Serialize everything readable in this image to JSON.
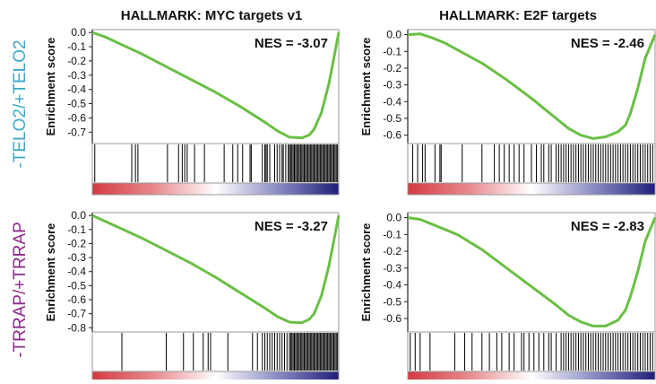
{
  "column_titles": [
    "HALLMARK: MYC targets v1",
    "HALLMARK: E2F targets"
  ],
  "row_labels": [
    {
      "text": "-TELO2/+TELO2",
      "color": "#3aa8c9"
    },
    {
      "text": "-TRRAP/+TRRAP",
      "color": "#8b2a8a"
    }
  ],
  "colors": {
    "curve": "#6abf45",
    "axis": "#222222",
    "ranked_high": "#d43a42",
    "ranked_mid": "#ffffff",
    "ranked_low": "#1f1f7a"
  },
  "chart_data": [
    {
      "type": "line",
      "title": "HALLMARK: MYC targets v1",
      "group": "-TELO2/+TELO2",
      "ylabel": "Enrichment score",
      "annotation": "NES = -3.07",
      "ylim": [
        -0.78,
        0.02
      ],
      "yticks": [
        0.0,
        -0.1,
        -0.2,
        -0.3,
        -0.4,
        -0.5,
        -0.6,
        -0.7
      ],
      "ytick_labels": [
        "0.0",
        "-0.1",
        "-0.2",
        "-0.3",
        "-0.4",
        "-0.5",
        "-0.6",
        "-0.7"
      ],
      "x": [
        0,
        0.05,
        0.1,
        0.2,
        0.3,
        0.4,
        0.5,
        0.6,
        0.7,
        0.75,
        0.8,
        0.85,
        0.88,
        0.9,
        0.93,
        0.96,
        0.98,
        1.0
      ],
      "y": [
        0.0,
        -0.03,
        -0.07,
        -0.15,
        -0.24,
        -0.33,
        -0.42,
        -0.52,
        -0.63,
        -0.69,
        -0.735,
        -0.74,
        -0.72,
        -0.68,
        -0.56,
        -0.36,
        -0.18,
        0.0
      ],
      "hits": [
        0.01,
        0.16,
        0.175,
        0.185,
        0.305,
        0.35,
        0.365,
        0.375,
        0.385,
        0.415,
        0.455,
        0.535,
        0.57,
        0.59,
        0.61,
        0.64,
        0.645,
        0.69,
        0.7,
        0.705,
        0.71,
        0.72,
        0.74,
        0.75,
        0.76,
        0.77,
        0.775,
        0.785,
        0.795,
        0.8,
        0.805,
        0.81,
        0.815,
        0.82,
        0.825,
        0.83,
        0.835,
        0.84,
        0.845,
        0.85,
        0.855,
        0.86,
        0.865,
        0.87,
        0.875,
        0.88,
        0.885,
        0.89,
        0.895,
        0.9,
        0.905,
        0.91,
        0.915,
        0.92,
        0.925,
        0.93,
        0.935,
        0.94,
        0.945,
        0.95,
        0.955,
        0.96,
        0.965,
        0.97,
        0.975,
        0.98,
        0.985,
        0.99,
        0.995
      ]
    },
    {
      "type": "line",
      "title": "HALLMARK: E2F targets",
      "group": "-TELO2/+TELO2",
      "ylabel": "Enrichment score",
      "annotation": "NES = -2.46",
      "ylim": [
        -0.65,
        0.03
      ],
      "yticks": [
        0.0,
        -0.1,
        -0.2,
        -0.3,
        -0.4,
        -0.5,
        -0.6
      ],
      "ytick_labels": [
        "0.0",
        "-0.1",
        "-0.2",
        "-0.3",
        "-0.4",
        "-0.5",
        "-0.6"
      ],
      "x": [
        0,
        0.05,
        0.1,
        0.15,
        0.2,
        0.3,
        0.4,
        0.5,
        0.6,
        0.65,
        0.7,
        0.75,
        0.8,
        0.85,
        0.88,
        0.9,
        0.93,
        0.96,
        1.0
      ],
      "y": [
        0.0,
        0.005,
        -0.02,
        -0.05,
        -0.09,
        -0.17,
        -0.27,
        -0.38,
        -0.5,
        -0.56,
        -0.6,
        -0.62,
        -0.61,
        -0.58,
        -0.54,
        -0.47,
        -0.32,
        -0.14,
        0.0
      ],
      "hits": [
        0.02,
        0.04,
        0.06,
        0.07,
        0.11,
        0.13,
        0.135,
        0.22,
        0.3,
        0.35,
        0.37,
        0.39,
        0.41,
        0.43,
        0.45,
        0.47,
        0.5,
        0.52,
        0.54,
        0.55,
        0.57,
        0.58,
        0.6,
        0.61,
        0.62,
        0.63,
        0.64,
        0.65,
        0.66,
        0.67,
        0.68,
        0.69,
        0.7,
        0.71,
        0.72,
        0.73,
        0.74,
        0.75,
        0.76,
        0.77,
        0.78,
        0.79,
        0.8,
        0.81,
        0.82,
        0.83,
        0.84,
        0.85,
        0.86,
        0.87,
        0.88,
        0.89,
        0.9,
        0.91,
        0.92,
        0.93,
        0.94,
        0.95,
        0.96,
        0.97,
        0.98,
        0.99
      ]
    },
    {
      "type": "line",
      "title": "HALLMARK: MYC targets v1",
      "group": "-TRRAP/+TRRAP",
      "ylabel": "Enrichment score",
      "annotation": "NES = -3.27",
      "ylim": [
        -0.83,
        0.02
      ],
      "yticks": [
        0.0,
        -0.1,
        -0.2,
        -0.3,
        -0.4,
        -0.5,
        -0.6,
        -0.7,
        -0.8
      ],
      "ytick_labels": [
        "0.0",
        "-0.1",
        "-0.2",
        "-0.3",
        "-0.4",
        "-0.5",
        "-0.6",
        "-0.7",
        "-0.8"
      ],
      "x": [
        0,
        0.05,
        0.1,
        0.2,
        0.3,
        0.4,
        0.5,
        0.6,
        0.7,
        0.75,
        0.8,
        0.85,
        0.88,
        0.9,
        0.93,
        0.96,
        0.98,
        1.0
      ],
      "y": [
        0.0,
        -0.04,
        -0.08,
        -0.16,
        -0.25,
        -0.34,
        -0.44,
        -0.55,
        -0.66,
        -0.72,
        -0.76,
        -0.765,
        -0.74,
        -0.7,
        -0.57,
        -0.36,
        -0.18,
        0.0
      ],
      "hits": [
        0.12,
        0.3,
        0.37,
        0.41,
        0.45,
        0.47,
        0.48,
        0.55,
        0.65,
        0.67,
        0.69,
        0.7,
        0.71,
        0.72,
        0.73,
        0.74,
        0.75,
        0.76,
        0.77,
        0.78,
        0.79,
        0.8,
        0.805,
        0.81,
        0.815,
        0.82,
        0.825,
        0.83,
        0.835,
        0.84,
        0.845,
        0.85,
        0.855,
        0.86,
        0.865,
        0.87,
        0.875,
        0.88,
        0.885,
        0.89,
        0.895,
        0.9,
        0.905,
        0.91,
        0.915,
        0.92,
        0.925,
        0.93,
        0.935,
        0.94,
        0.945,
        0.95,
        0.955,
        0.96,
        0.965,
        0.97,
        0.975,
        0.98,
        0.985,
        0.99,
        0.995
      ]
    },
    {
      "type": "line",
      "title": "HALLMARK: E2F targets",
      "group": "-TRRAP/+TRRAP",
      "ylabel": "Enrichment score",
      "annotation": "NES = -2.83",
      "ylim": [
        -0.68,
        0.03
      ],
      "yticks": [
        0.0,
        -0.1,
        -0.2,
        -0.3,
        -0.4,
        -0.5,
        -0.6
      ],
      "ytick_labels": [
        "0.0",
        "-0.1",
        "-0.2",
        "-0.3",
        "-0.4",
        "-0.5",
        "-0.6"
      ],
      "x": [
        0,
        0.05,
        0.1,
        0.15,
        0.2,
        0.3,
        0.4,
        0.5,
        0.6,
        0.65,
        0.7,
        0.75,
        0.8,
        0.85,
        0.88,
        0.9,
        0.93,
        0.96,
        1.0
      ],
      "y": [
        0.0,
        -0.01,
        -0.04,
        -0.07,
        -0.1,
        -0.19,
        -0.3,
        -0.41,
        -0.52,
        -0.58,
        -0.62,
        -0.645,
        -0.645,
        -0.61,
        -0.55,
        -0.47,
        -0.32,
        -0.14,
        0.0
      ],
      "hits": [
        0.01,
        0.03,
        0.05,
        0.09,
        0.19,
        0.23,
        0.26,
        0.3,
        0.33,
        0.36,
        0.38,
        0.41,
        0.43,
        0.46,
        0.47,
        0.49,
        0.51,
        0.53,
        0.55,
        0.57,
        0.58,
        0.6,
        0.62,
        0.63,
        0.64,
        0.65,
        0.66,
        0.67,
        0.68,
        0.69,
        0.7,
        0.71,
        0.72,
        0.73,
        0.74,
        0.75,
        0.76,
        0.77,
        0.78,
        0.79,
        0.8,
        0.81,
        0.82,
        0.83,
        0.84,
        0.85,
        0.86,
        0.87,
        0.88,
        0.89,
        0.9,
        0.91,
        0.92,
        0.93,
        0.94,
        0.95,
        0.96,
        0.97,
        0.98,
        0.99
      ]
    }
  ]
}
